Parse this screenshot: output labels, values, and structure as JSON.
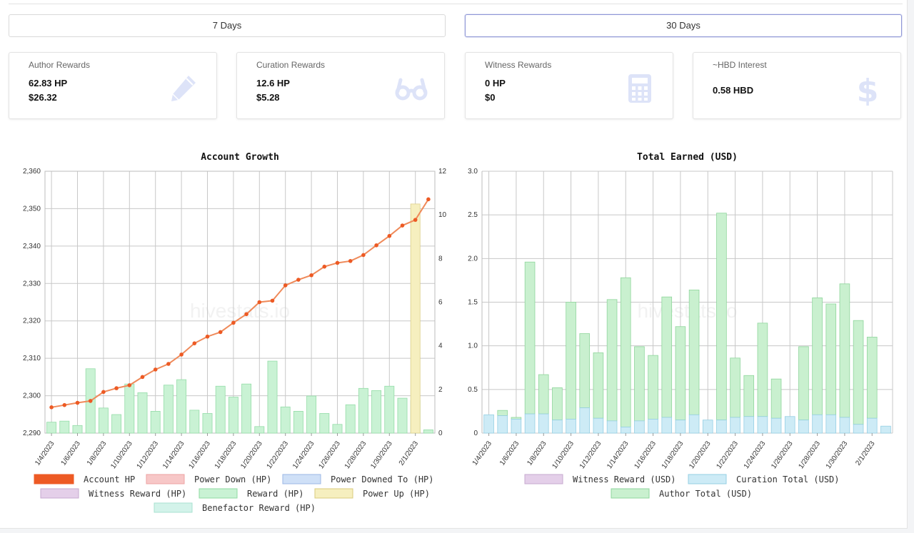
{
  "range_buttons": [
    {
      "label": "7 Days",
      "active": false
    },
    {
      "label": "30 Days",
      "active": true
    }
  ],
  "cards": [
    {
      "title": "Author Rewards",
      "line1": "62.83 HP",
      "line2": "$26.32",
      "icon": "pencil-icon"
    },
    {
      "title": "Curation Rewards",
      "line1": "12.6 HP",
      "line2": "$5.28",
      "icon": "glasses-icon"
    },
    {
      "title": "Witness Rewards",
      "line1": "0 HP",
      "line2": "$0",
      "icon": "calculator-icon"
    },
    {
      "title": "~HBD Interest",
      "line1": "0.58 HBD",
      "line2": "",
      "icon": "dollar-icon"
    }
  ],
  "colors": {
    "account_hp": "#ed5a24",
    "power_down": "#f7c7c7",
    "power_downed_to": "#cfe0f7",
    "witness": "#e4cfe9",
    "reward": "#c9f2d4",
    "power_up": "#f6efbf",
    "benefactor": "#d3f3ea",
    "curation": "#cdebf6",
    "author": "#c9f0cf"
  },
  "chart_data": [
    {
      "type": "bar",
      "title": "Account Growth",
      "watermark": "hivestats.io",
      "x": [
        "1/4/2023",
        "1/5/2023",
        "1/6/2023",
        "1/7/2023",
        "1/8/2023",
        "1/9/2023",
        "1/10/2023",
        "1/11/2023",
        "1/12/2023",
        "1/13/2023",
        "1/14/2023",
        "1/15/2023",
        "1/16/2023",
        "1/17/2023",
        "1/18/2023",
        "1/19/2023",
        "1/20/2023",
        "1/21/2023",
        "1/22/2023",
        "1/23/2023",
        "1/24/2023",
        "1/25/2023",
        "1/26/2023",
        "1/27/2023",
        "1/28/2023",
        "1/29/2023",
        "1/30/2023",
        "1/31/2023",
        "2/1/2023",
        "2/2/2023"
      ],
      "x_tick_labels": [
        "1/4/2023",
        "1/6/2023",
        "1/8/2023",
        "1/10/2023",
        "1/12/2023",
        "1/14/2023",
        "1/16/2023",
        "1/18/2023",
        "1/20/2023",
        "1/22/2023",
        "1/24/2023",
        "1/26/2023",
        "1/28/2023",
        "1/30/2023",
        "2/1/2023"
      ],
      "y_left": {
        "min": 2290,
        "max": 2360,
        "ticks": [
          2290,
          2300,
          2310,
          2320,
          2330,
          2340,
          2350,
          2360
        ],
        "tick_labels": [
          "2,290",
          "2,300",
          "2,310",
          "2,320",
          "2,330",
          "2,340",
          "2,350",
          "2,360"
        ]
      },
      "y_right": {
        "min": 0,
        "max": 12,
        "ticks": [
          0,
          2,
          4,
          6,
          8,
          10,
          12
        ]
      },
      "series": [
        {
          "name": "Account HP",
          "kind": "line",
          "axis": "left",
          "color_key": "account_hp",
          "values": [
            2296.9,
            2297.5,
            2298.1,
            2298.6,
            2301.0,
            2302.0,
            2302.8,
            2305.0,
            2307.0,
            2308.5,
            2311.0,
            2314.0,
            2315.8,
            2317.0,
            2319.5,
            2321.8,
            2325.0,
            2325.4,
            2329.5,
            2331.0,
            2332.2,
            2334.5,
            2335.5,
            2336.0,
            2337.6,
            2340.2,
            2342.7,
            2345.5,
            2347.0,
            2352.5
          ]
        },
        {
          "name": "Power Down (HP)",
          "kind": "bar",
          "axis": "right",
          "color_key": "power_down",
          "values": [
            0,
            0,
            0,
            0,
            0,
            0,
            0,
            0,
            0,
            0,
            0,
            0,
            0,
            0,
            0,
            0,
            0,
            0,
            0,
            0,
            0,
            0,
            0,
            0,
            0,
            0,
            0,
            0,
            0,
            0
          ]
        },
        {
          "name": "Power Downed To (HP)",
          "kind": "bar",
          "axis": "right",
          "color_key": "power_downed_to",
          "values": [
            0,
            0,
            0,
            0,
            0,
            0,
            0,
            0,
            0,
            0,
            0,
            0,
            0,
            0,
            0,
            0,
            0,
            0,
            0,
            0,
            0,
            0,
            0,
            0,
            0,
            0,
            0,
            0,
            0,
            0
          ]
        },
        {
          "name": "Witness Reward (HP)",
          "kind": "bar",
          "axis": "right",
          "color_key": "witness",
          "values": [
            0,
            0,
            0,
            0,
            0,
            0,
            0,
            0,
            0,
            0,
            0,
            0,
            0,
            0,
            0,
            0,
            0,
            0,
            0,
            0,
            0,
            0,
            0,
            0,
            0,
            0,
            0,
            0,
            0,
            0
          ]
        },
        {
          "name": "Reward (HP)",
          "kind": "bar",
          "axis": "right",
          "color_key": "reward",
          "values": [
            0.5,
            0.55,
            0.35,
            2.95,
            1.15,
            0.85,
            2.25,
            1.85,
            1.0,
            2.2,
            2.45,
            1.05,
            0.9,
            2.15,
            1.65,
            2.25,
            0.3,
            3.3,
            1.2,
            1.0,
            1.7,
            0.9,
            0.4,
            1.3,
            2.05,
            1.95,
            2.15,
            1.6,
            1.5,
            0.15
          ]
        },
        {
          "name": "Power Up (HP)",
          "kind": "bar",
          "axis": "right",
          "color_key": "power_up",
          "values": [
            0,
            0,
            0,
            0,
            0,
            0,
            0,
            0,
            0,
            0,
            0,
            0,
            0,
            0,
            0,
            0,
            0,
            0,
            0,
            0,
            0,
            0,
            0,
            0,
            0,
            0,
            0,
            0,
            10.5,
            0
          ]
        },
        {
          "name": "Benefactor Reward (HP)",
          "kind": "bar",
          "axis": "right",
          "color_key": "benefactor",
          "values": [
            0,
            0,
            0,
            0,
            0,
            0,
            0,
            0,
            0,
            0,
            0,
            0,
            0,
            0,
            0,
            0,
            0,
            0,
            0,
            0,
            0,
            0,
            0,
            0,
            0,
            0,
            0,
            0,
            0,
            0
          ]
        }
      ],
      "legend": [
        "Account HP",
        "Power Down (HP)",
        "Power Downed To (HP)",
        "Witness Reward (HP)",
        "Reward (HP)",
        "Power Up (HP)",
        "Benefactor Reward (HP)"
      ],
      "grid": true,
      "legend_position": "bottom"
    },
    {
      "type": "bar",
      "stacked": true,
      "title": "Total Earned (USD)",
      "watermark": "hivestats.io",
      "x": [
        "1/4/2023",
        "1/5/2023",
        "1/6/2023",
        "1/7/2023",
        "1/8/2023",
        "1/9/2023",
        "1/10/2023",
        "1/11/2023",
        "1/12/2023",
        "1/13/2023",
        "1/14/2023",
        "1/15/2023",
        "1/16/2023",
        "1/17/2023",
        "1/18/2023",
        "1/19/2023",
        "1/20/2023",
        "1/21/2023",
        "1/22/2023",
        "1/23/2023",
        "1/24/2023",
        "1/25/2023",
        "1/26/2023",
        "1/27/2023",
        "1/28/2023",
        "1/29/2023",
        "1/30/2023",
        "1/31/2023",
        "2/1/2023",
        "2/2/2023"
      ],
      "x_tick_labels": [
        "1/4/2023",
        "1/6/2023",
        "1/8/2023",
        "1/10/2023",
        "1/12/2023",
        "1/14/2023",
        "1/16/2023",
        "1/18/2023",
        "1/20/2023",
        "1/22/2023",
        "1/24/2023",
        "1/26/2023",
        "1/28/2023",
        "1/30/2023",
        "2/1/2023"
      ],
      "y": {
        "min": 0,
        "max": 3.0,
        "ticks": [
          0,
          0.5,
          1.0,
          1.5,
          2.0,
          2.5,
          3.0
        ],
        "tick_labels": [
          "0",
          "0.5",
          "1.0",
          "1.5",
          "2.0",
          "2.5",
          "3.0"
        ]
      },
      "series": [
        {
          "name": "Witness Reward (USD)",
          "color_key": "witness",
          "values": [
            0,
            0,
            0,
            0,
            0,
            0,
            0,
            0,
            0,
            0,
            0,
            0,
            0,
            0,
            0,
            0,
            0,
            0,
            0,
            0,
            0,
            0,
            0,
            0,
            0,
            0,
            0,
            0,
            0,
            0
          ]
        },
        {
          "name": "Curation Total (USD)",
          "color_key": "curation",
          "values": [
            0.21,
            0.2,
            0.16,
            0.22,
            0.22,
            0.15,
            0.16,
            0.29,
            0.17,
            0.14,
            0.07,
            0.14,
            0.16,
            0.18,
            0.15,
            0.21,
            0.15,
            0.15,
            0.18,
            0.19,
            0.19,
            0.17,
            0.19,
            0.15,
            0.21,
            0.21,
            0.18,
            0.1,
            0.17,
            0.08
          ]
        },
        {
          "name": "Author Total (USD)",
          "color_key": "author",
          "values": [
            0,
            0.06,
            0.02,
            1.74,
            0.45,
            0.37,
            1.34,
            0.85,
            0.75,
            1.39,
            1.71,
            0.85,
            0.73,
            1.38,
            1.07,
            1.43,
            0,
            2.37,
            0.68,
            0.47,
            1.07,
            0.45,
            0,
            0.84,
            1.34,
            1.27,
            1.53,
            1.19,
            0.93,
            0
          ]
        }
      ],
      "legend": [
        "Witness Reward (USD)",
        "Curation Total (USD)",
        "Author Total (USD)"
      ],
      "grid": true,
      "legend_position": "bottom"
    }
  ]
}
